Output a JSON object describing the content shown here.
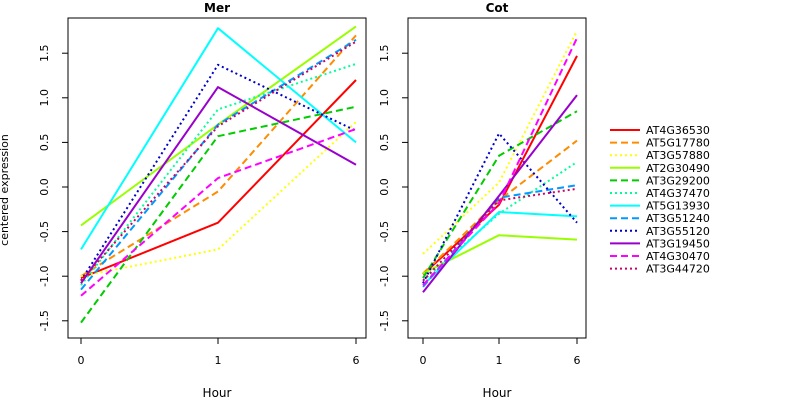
{
  "chart_data": [
    {
      "type": "line",
      "title": "Mer",
      "xlabel": "Hour",
      "ylabel": "centered expression",
      "x_categories": [
        "0",
        "1",
        "6"
      ],
      "yticks": [
        "-1.5",
        "-1.0",
        "-0.5",
        "0.0",
        "0.5",
        "1.0",
        "1.5"
      ],
      "ylim": [
        -1.6,
        1.85
      ],
      "series": [
        {
          "name": "AT4G36530",
          "color": "#ff0000",
          "dash": "solid",
          "values": [
            -1.02,
            -0.4,
            1.2
          ]
        },
        {
          "name": "AT5G17780",
          "color": "#ff8c00",
          "dash": "dashed",
          "values": [
            -1.0,
            -0.05,
            1.7
          ]
        },
        {
          "name": "AT3G57880",
          "color": "#ffff00",
          "dash": "dotted",
          "values": [
            -1.0,
            -0.7,
            0.73
          ]
        },
        {
          "name": "AT2G30490",
          "color": "#99ff00",
          "dash": "solid",
          "values": [
            -0.43,
            0.7,
            1.8
          ]
        },
        {
          "name": "AT3G29200",
          "color": "#00cc00",
          "dash": "dashed",
          "values": [
            -1.52,
            0.57,
            0.9
          ]
        },
        {
          "name": "AT4G37470",
          "color": "#00ff99",
          "dash": "dotted",
          "values": [
            -1.1,
            0.87,
            1.38
          ]
        },
        {
          "name": "AT5G13930",
          "color": "#00ffff",
          "dash": "solid",
          "values": [
            -0.7,
            1.78,
            0.5
          ]
        },
        {
          "name": "AT3G51240",
          "color": "#0099ff",
          "dash": "dashed",
          "values": [
            -1.15,
            0.7,
            1.65
          ]
        },
        {
          "name": "AT3G55120",
          "color": "#0000cc",
          "dash": "dotted",
          "values": [
            -1.05,
            1.37,
            0.63
          ]
        },
        {
          "name": "AT3G19450",
          "color": "#9900cc",
          "dash": "solid",
          "values": [
            -1.08,
            1.12,
            0.25
          ]
        },
        {
          "name": "AT4G30470",
          "color": "#ff00ff",
          "dash": "dashed",
          "values": [
            -1.22,
            0.1,
            0.65
          ]
        },
        {
          "name": "AT3G44720",
          "color": "#cc0066",
          "dash": "dotted",
          "values": [
            -1.05,
            0.68,
            1.63
          ]
        }
      ]
    },
    {
      "type": "line",
      "title": "Cot",
      "xlabel": "Hour",
      "ylabel": "",
      "x_categories": [
        "0",
        "1",
        "6"
      ],
      "yticks": [
        "-1.5",
        "-1.0",
        "-0.5",
        "0.0",
        "0.5",
        "1.0",
        "1.5"
      ],
      "ylim": [
        -1.6,
        1.85
      ],
      "series": [
        {
          "name": "AT4G36530",
          "color": "#ff0000",
          "dash": "solid",
          "values": [
            -0.98,
            -0.2,
            1.47
          ]
        },
        {
          "name": "AT5G17780",
          "color": "#ff8c00",
          "dash": "dashed",
          "values": [
            -0.97,
            -0.15,
            0.52
          ]
        },
        {
          "name": "AT3G57880",
          "color": "#ffff00",
          "dash": "dotted",
          "values": [
            -0.75,
            0.05,
            1.75
          ]
        },
        {
          "name": "AT2G30490",
          "color": "#99ff00",
          "dash": "solid",
          "values": [
            -0.97,
            -0.54,
            -0.59
          ]
        },
        {
          "name": "AT3G29200",
          "color": "#00cc00",
          "dash": "dashed",
          "values": [
            -1.02,
            0.35,
            0.85
          ]
        },
        {
          "name": "AT4G37470",
          "color": "#00ff99",
          "dash": "dotted",
          "values": [
            -1.05,
            -0.3,
            0.28
          ]
        },
        {
          "name": "AT5G13930",
          "color": "#00ffff",
          "dash": "solid",
          "values": [
            -1.1,
            -0.28,
            -0.33
          ]
        },
        {
          "name": "AT3G51240",
          "color": "#0099ff",
          "dash": "dashed",
          "values": [
            -1.12,
            -0.12,
            0.02
          ]
        },
        {
          "name": "AT3G55120",
          "color": "#0000cc",
          "dash": "dotted",
          "values": [
            -1.08,
            0.6,
            -0.4
          ]
        },
        {
          "name": "AT3G19450",
          "color": "#9900cc",
          "dash": "solid",
          "values": [
            -1.18,
            -0.1,
            1.03
          ]
        },
        {
          "name": "AT4G30470",
          "color": "#ff00ff",
          "dash": "dashed",
          "values": [
            -1.1,
            -0.18,
            1.67
          ]
        },
        {
          "name": "AT3G44720",
          "color": "#cc0066",
          "dash": "dotted",
          "values": [
            -1.05,
            -0.15,
            -0.02
          ]
        }
      ]
    }
  ],
  "legend": {
    "placement": "right",
    "entries": [
      {
        "label": "AT4G36530",
        "color": "#ff0000",
        "dash": "solid"
      },
      {
        "label": "AT5G17780",
        "color": "#ff8c00",
        "dash": "dashed"
      },
      {
        "label": "AT3G57880",
        "color": "#ffff00",
        "dash": "dotted"
      },
      {
        "label": "AT2G30490",
        "color": "#99ff00",
        "dash": "solid"
      },
      {
        "label": "AT3G29200",
        "color": "#00cc00",
        "dash": "dashed"
      },
      {
        "label": "AT4G37470",
        "color": "#00ff99",
        "dash": "dotted"
      },
      {
        "label": "AT5G13930",
        "color": "#00ffff",
        "dash": "solid"
      },
      {
        "label": "AT3G51240",
        "color": "#0099ff",
        "dash": "dashed"
      },
      {
        "label": "AT3G55120",
        "color": "#0000cc",
        "dash": "dotted"
      },
      {
        "label": "AT3G19450",
        "color": "#9900cc",
        "dash": "solid"
      },
      {
        "label": "AT4G30470",
        "color": "#ff00ff",
        "dash": "dashed"
      },
      {
        "label": "AT3G44720",
        "color": "#cc0066",
        "dash": "dotted"
      }
    ]
  }
}
